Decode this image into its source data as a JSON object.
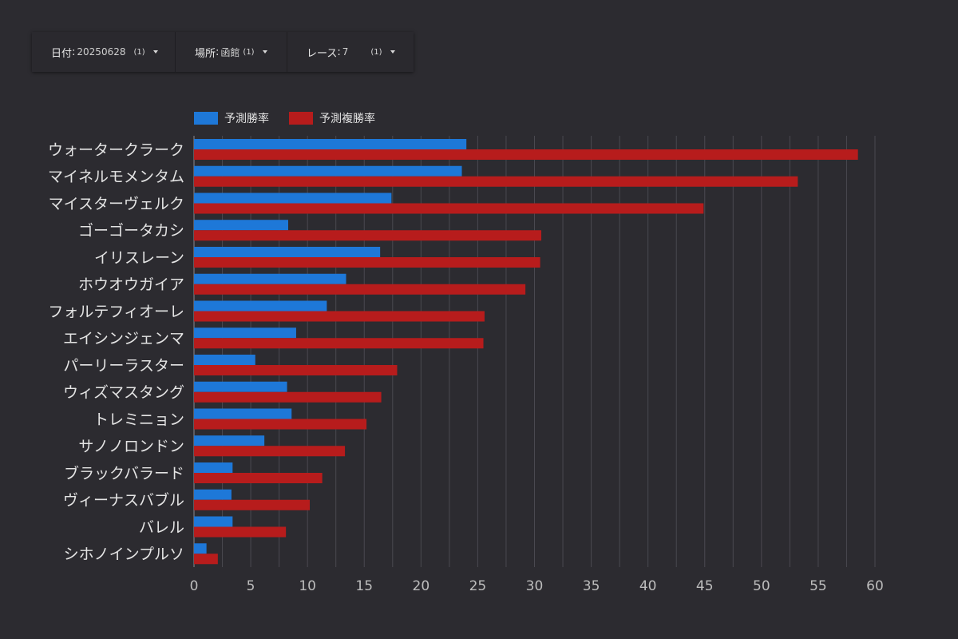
{
  "filters": [
    {
      "label": "日付",
      "value": "20250628",
      "count": "(1)"
    },
    {
      "label": "場所",
      "value": "函館",
      "count": "(1)"
    },
    {
      "label": "レース",
      "value": "7",
      "count": "(1)"
    }
  ],
  "colors": {
    "win": "#1e78d8",
    "place": "#b71c1c",
    "grid": "#4a4950",
    "text": "#e4e4e4",
    "axis": "#bdbdbd"
  },
  "chart_data": {
    "type": "bar",
    "orientation": "horizontal",
    "categories": [
      "ウォータークラーク",
      "マイネルモメンタム",
      "マイスターヴェルク",
      "ゴーゴータカシ",
      "イリスレーン",
      "ホウオウガイア",
      "フォルテフィオーレ",
      "エイシンジェンマ",
      "パーリーラスター",
      "ウィズマスタング",
      "トレミニョン",
      "サノノロンドン",
      "ブラックバラード",
      "ヴィーナスバブル",
      "バレル",
      "シホノインプルソ"
    ],
    "series": [
      {
        "name": "予測勝率",
        "color": "#1e78d8",
        "values": [
          24.0,
          23.6,
          17.4,
          8.3,
          16.4,
          13.4,
          11.7,
          9.0,
          5.4,
          8.2,
          8.6,
          6.2,
          3.4,
          3.3,
          3.4,
          1.1
        ]
      },
      {
        "name": "予測複勝率",
        "color": "#b71c1c",
        "values": [
          58.5,
          53.2,
          44.9,
          30.6,
          30.5,
          29.2,
          25.6,
          25.5,
          17.9,
          16.5,
          15.2,
          13.3,
          11.3,
          10.2,
          8.1,
          2.1
        ]
      }
    ],
    "xticks": [
      0,
      5,
      10,
      15,
      20,
      25,
      30,
      35,
      40,
      45,
      50,
      55,
      60
    ],
    "xlim": [
      0,
      60
    ],
    "grid": true,
    "legend": "top-left"
  }
}
